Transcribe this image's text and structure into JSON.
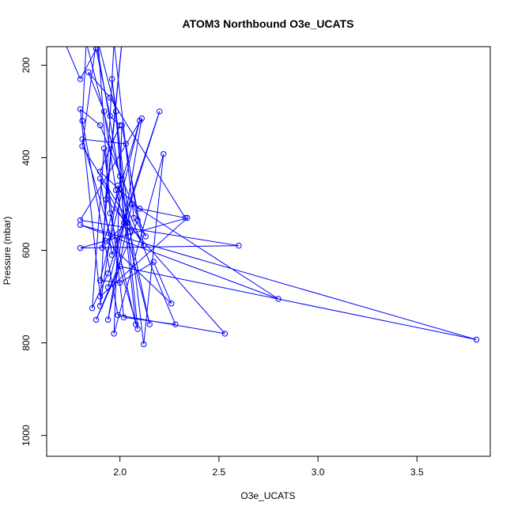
{
  "chart_data": {
    "type": "line",
    "title": "ATOM3 Northbound O3e_UCATS",
    "xlabel": "O3e_UCATS",
    "ylabel": "Pressure (mbar)",
    "xlim": [
      1.63,
      3.87
    ],
    "ylim": [
      1045,
      160
    ],
    "y_reversed": true,
    "xticks": [
      2.0,
      2.5,
      3.0,
      3.5
    ],
    "xtick_labels": [
      "2.0",
      "2.5",
      "3.0",
      "3.5"
    ],
    "yticks": [
      200,
      400,
      600,
      800,
      1000
    ],
    "ytick_labels": [
      "200",
      "400",
      "600",
      "800",
      "1000"
    ],
    "grid": false,
    "series": [
      {
        "color": "#0000ff",
        "marker": "open-circle",
        "points": [
          [
            1.72,
            150
          ],
          [
            1.8,
            230
          ],
          [
            1.88,
            165
          ],
          [
            1.95,
            310
          ],
          [
            2.0,
            330
          ],
          [
            1.9,
            430
          ],
          [
            2.1,
            510
          ],
          [
            2.33,
            530
          ],
          [
            1.95,
            270
          ],
          [
            1.84,
            215
          ],
          [
            1.92,
            300
          ],
          [
            1.98,
            470
          ],
          [
            2.15,
            760
          ],
          [
            2.05,
            560
          ],
          [
            1.9,
            445
          ],
          [
            1.96,
            610
          ],
          [
            2.2,
            300
          ],
          [
            1.94,
            650
          ],
          [
            1.86,
            725
          ],
          [
            1.92,
            380
          ],
          [
            2.02,
            745
          ],
          [
            2.28,
            760
          ],
          [
            1.99,
            460
          ],
          [
            1.9,
            720
          ],
          [
            1.97,
            150
          ],
          [
            2.07,
            530
          ],
          [
            2.13,
            570
          ],
          [
            1.9,
            330
          ],
          [
            1.8,
            295
          ],
          [
            1.9,
            700
          ],
          [
            2.34,
            530
          ],
          [
            1.8,
            595
          ],
          [
            2.6,
            590
          ],
          [
            1.8,
            535
          ],
          [
            2.11,
            315
          ],
          [
            1.94,
            750
          ],
          [
            2.06,
            500
          ],
          [
            2.8,
            705
          ],
          [
            1.8,
            545
          ],
          [
            3.8,
            793
          ],
          [
            2.0,
            635
          ],
          [
            1.88,
            750
          ],
          [
            2.09,
            535
          ],
          [
            2.03,
            370
          ],
          [
            1.81,
            360
          ],
          [
            2.09,
            770
          ],
          [
            1.96,
            230
          ],
          [
            2.12,
            803
          ],
          [
            2.22,
            392
          ],
          [
            1.97,
            780
          ],
          [
            2.01,
            330
          ],
          [
            2.12,
            590
          ],
          [
            1.81,
            375
          ],
          [
            1.88,
            150
          ],
          [
            2.04,
            540
          ],
          [
            1.93,
            580
          ],
          [
            2.26,
            715
          ],
          [
            2.17,
            625
          ],
          [
            2.0,
            670
          ],
          [
            1.9,
            665
          ],
          [
            2.1,
            320
          ],
          [
            1.91,
            595
          ],
          [
            2.01,
            150
          ],
          [
            1.93,
            490
          ],
          [
            2.53,
            780
          ],
          [
            1.99,
            740
          ],
          [
            1.81,
            320
          ],
          [
            1.83,
            150
          ],
          [
            2.0,
            440
          ],
          [
            2.08,
            760
          ],
          [
            1.95,
            520
          ],
          [
            1.89,
            150
          ],
          [
            1.98,
            300
          ],
          [
            2.02,
            540
          ],
          [
            1.94,
            680
          ]
        ]
      }
    ]
  }
}
